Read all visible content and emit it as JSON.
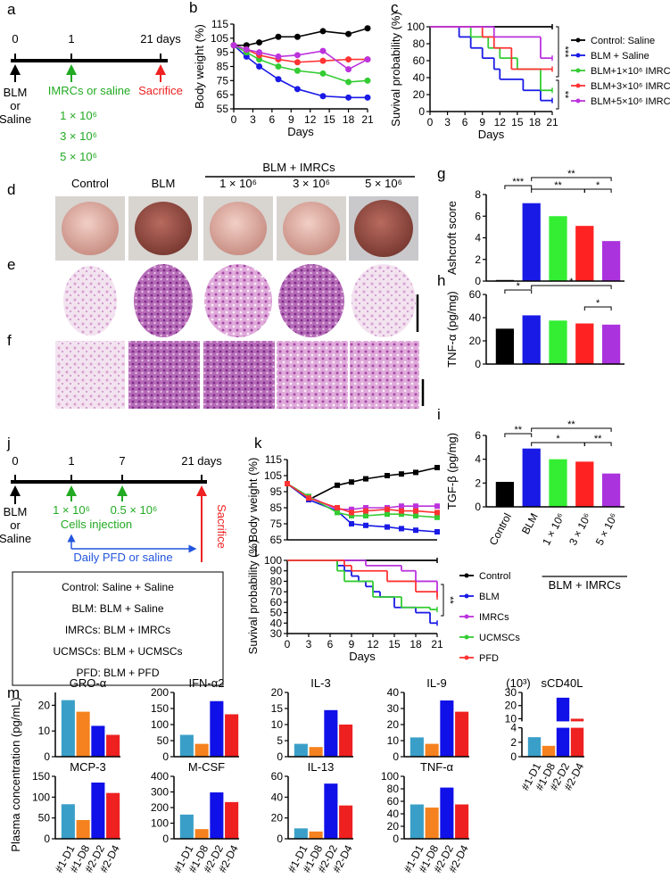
{
  "panel_labels": [
    "a",
    "b",
    "c",
    "d",
    "e",
    "f",
    "g",
    "h",
    "i",
    "j",
    "k",
    "l",
    "m"
  ],
  "timeline_a": {
    "ticks": [
      "0",
      "1",
      "21 days"
    ],
    "start": [
      "BLM",
      "or",
      "Saline"
    ],
    "injection": "IMRCs or saline",
    "end": "Sacrifice",
    "doses": [
      "1 × 10⁶",
      "3 × 10⁶",
      "5 × 10⁶"
    ]
  },
  "images_d": {
    "group": "BLM + IMRCs",
    "columns": [
      "Control",
      "BLM",
      "1 × 10⁶",
      "3 × 10⁶",
      "5 × 10⁶"
    ]
  },
  "timeline_j": {
    "ticks": [
      "0",
      "1",
      "7",
      "21 days"
    ],
    "start": [
      "BLM",
      "or",
      "Saline"
    ],
    "doses": [
      "1 × 10⁶",
      "0.5 × 10⁶"
    ],
    "injection": "Cells injection",
    "treatment": "Daily PFD or saline",
    "end": "Sacrifice",
    "groups": [
      "Control: Saline + Saline",
      "BLM: BLM + Saline",
      "IMRCs: BLM + IMRCs",
      "UCMSCs: BLM + UCMSCs",
      "PFD: BLM + PFD"
    ]
  },
  "m_panel": {
    "ylabel": "Plasma concentration (pg/mL)"
  },
  "chart_data": [
    {
      "type": "line",
      "marker": "circle",
      "xlabel": "Days",
      "ylabel": "Body weight (%)",
      "x": [
        0,
        2,
        4,
        7,
        10,
        14,
        18,
        21
      ],
      "xlim": [
        0,
        21
      ],
      "xticks": [
        0,
        3,
        6,
        9,
        12,
        15,
        18,
        21
      ],
      "ylim": [
        55,
        115
      ],
      "yticks": [
        55,
        65,
        75,
        85,
        95,
        105,
        115
      ],
      "series": [
        {
          "color": "#000000",
          "values": [
            100,
            100,
            102,
            106,
            106,
            110,
            108,
            112
          ]
        },
        {
          "color": "#1a1ae6",
          "values": [
            100,
            92,
            85,
            76,
            69,
            64,
            63,
            63
          ]
        },
        {
          "color": "#33cc33",
          "values": [
            100,
            95,
            90,
            85,
            82,
            80,
            74,
            75
          ]
        },
        {
          "color": "#ff3333",
          "values": [
            100,
            97,
            93,
            90,
            88,
            89,
            90,
            90
          ]
        },
        {
          "color": "#bb33dd",
          "values": [
            100,
            97,
            95,
            92,
            93,
            96,
            83,
            90
          ]
        }
      ]
    },
    {
      "type": "line",
      "drawstyle": "steps-post",
      "xlabel": "Days",
      "ylabel": "Suvival probability (%)",
      "xlim": [
        0,
        21
      ],
      "xticks": [
        0,
        3,
        6,
        9,
        12,
        15,
        18,
        21
      ],
      "ylim": [
        0,
        100
      ],
      "yticks": [
        0,
        20,
        40,
        60,
        80,
        100
      ],
      "legend": "right",
      "annotations": [
        "***",
        "**"
      ],
      "series": [
        {
          "name": "Control: Saline",
          "color": "#000000",
          "x": [
            0,
            21
          ],
          "values": [
            100,
            100
          ]
        },
        {
          "name": "BLM + Saline",
          "color": "#1a1ae6",
          "x": [
            0,
            5,
            7,
            9,
            11,
            12,
            16,
            19,
            21
          ],
          "values": [
            100,
            88,
            75,
            63,
            50,
            38,
            25,
            13,
            13
          ]
        },
        {
          "name": "BLM+1×10⁶ IMRCs",
          "color": "#33cc33",
          "x": [
            0,
            7,
            10,
            12,
            15,
            19,
            21
          ],
          "values": [
            100,
            88,
            75,
            63,
            50,
            25,
            25
          ]
        },
        {
          "name": "BLM+3×10⁶ IMRCs",
          "color": "#ff3333",
          "x": [
            0,
            9,
            11,
            14,
            21
          ],
          "values": [
            100,
            88,
            75,
            50,
            50
          ]
        },
        {
          "name": "BLM+5×10⁶ IMRCs",
          "color": "#bb33dd",
          "x": [
            0,
            11,
            19,
            21
          ],
          "values": [
            100,
            88,
            63,
            63
          ]
        }
      ]
    },
    {
      "type": "bar",
      "ylabel": "Ashcroft score",
      "ylim": [
        0,
        8
      ],
      "yticks": [
        0,
        2,
        4,
        6,
        8
      ],
      "values": [
        0.1,
        7.2,
        6.0,
        5.1,
        3.7
      ],
      "colors": [
        "#000000",
        "#1a1ae6",
        "#33ee33",
        "#ff2222",
        "#aa33dd"
      ],
      "annotations": [
        "***",
        "**",
        "**",
        "*"
      ]
    },
    {
      "type": "bar",
      "ylabel": "TNF-α (pg/mg)",
      "ylim": [
        0,
        60
      ],
      "yticks": [
        0,
        20,
        40,
        60
      ],
      "values": [
        30.5,
        42,
        37.5,
        35,
        34
      ],
      "colors": [
        "#000000",
        "#1a1ae6",
        "#33ee33",
        "#ff2222",
        "#aa33dd"
      ],
      "annotations": [
        "*",
        "*",
        "*"
      ]
    },
    {
      "type": "bar",
      "ylabel": "TGF-β (pg/mg)",
      "ylim": [
        0,
        6
      ],
      "yticks": [
        0,
        2,
        4,
        6
      ],
      "categories": [
        "Control",
        "BLM",
        "1 × 10⁶",
        "3 × 10⁶",
        "5 × 10⁶"
      ],
      "xlabel": "BLM + IMRCs",
      "values": [
        2.1,
        4.9,
        4.0,
        3.8,
        2.8
      ],
      "colors": [
        "#000000",
        "#1a1ae6",
        "#33ee33",
        "#ff2222",
        "#aa33dd"
      ],
      "annotations": [
        "**",
        "**",
        "*",
        "**"
      ]
    },
    {
      "type": "line",
      "marker": "square",
      "ylabel": "Body weight (%)",
      "x": [
        0,
        3,
        7,
        9,
        11,
        14,
        16,
        18,
        21
      ],
      "xlim": [
        0,
        21
      ],
      "ylim": [
        65,
        115
      ],
      "yticks": [
        65,
        75,
        85,
        95,
        105,
        115
      ],
      "series": [
        {
          "color": "#000000",
          "values": [
            100,
            90,
            99,
            101,
            103,
            105,
            106,
            107,
            110
          ]
        },
        {
          "color": "#1a1ae6",
          "values": [
            100,
            90,
            83,
            75,
            74,
            73,
            72,
            71,
            70
          ]
        },
        {
          "color": "#bb33dd",
          "values": [
            100,
            92,
            84,
            84,
            85,
            85,
            86,
            86,
            86
          ]
        },
        {
          "color": "#33cc33",
          "values": [
            100,
            92,
            82,
            80,
            80,
            81,
            81,
            80,
            79
          ]
        },
        {
          "color": "#ff3333",
          "values": [
            100,
            91,
            85,
            82,
            83,
            84,
            83,
            83,
            82
          ]
        }
      ]
    },
    {
      "type": "line",
      "drawstyle": "steps-post",
      "xlabel": "Days",
      "ylabel": "Suvival probability (%)",
      "xlim": [
        0,
        21
      ],
      "xticks": [
        0,
        3,
        6,
        9,
        12,
        15,
        18,
        21
      ],
      "ylim": [
        30,
        100
      ],
      "yticks": [
        30,
        40,
        50,
        60,
        70,
        80,
        90,
        100
      ],
      "legend": "right",
      "annotations": [
        "**"
      ],
      "series": [
        {
          "name": "Control",
          "color": "#000000",
          "x": [
            0,
            21
          ],
          "values": [
            100,
            100
          ]
        },
        {
          "name": "BLM",
          "color": "#1a1ae6",
          "x": [
            0,
            7,
            8,
            9,
            10,
            11,
            12,
            13,
            15,
            18,
            20,
            21
          ],
          "values": [
            100,
            95,
            90,
            85,
            80,
            75,
            70,
            65,
            55,
            50,
            40,
            40
          ]
        },
        {
          "name": "IMRCs",
          "color": "#bb33dd",
          "x": [
            0,
            11,
            16,
            18,
            21
          ],
          "values": [
            100,
            95,
            90,
            80,
            70
          ]
        },
        {
          "name": "UCMSCs",
          "color": "#33cc33",
          "x": [
            0,
            7,
            8,
            12,
            16,
            20,
            21
          ],
          "values": [
            100,
            90,
            80,
            65,
            55,
            53,
            53
          ]
        },
        {
          "name": "PFD",
          "color": "#ff3333",
          "x": [
            0,
            8,
            9,
            14,
            18,
            21
          ],
          "values": [
            100,
            95,
            90,
            80,
            70,
            65
          ]
        }
      ]
    },
    {
      "type": "bar",
      "title": "GRO-α",
      "ylim": [
        0,
        25
      ],
      "yticks": [
        0,
        10,
        20
      ],
      "values": [
        22,
        17.5,
        12,
        8.5
      ],
      "colors": [
        "#3a9fc8",
        "#f5821f",
        "#1010e8",
        "#ee2020"
      ]
    },
    {
      "type": "bar",
      "title": "IFN-α2",
      "ylim": [
        0,
        200
      ],
      "yticks": [
        0,
        50,
        100,
        150,
        200
      ],
      "values": [
        68,
        40,
        173,
        132
      ],
      "colors": [
        "#3a9fc8",
        "#f5821f",
        "#1010e8",
        "#ee2020"
      ]
    },
    {
      "type": "bar",
      "title": "IL-3",
      "ylim": [
        0,
        20
      ],
      "yticks": [
        0,
        5,
        10,
        15,
        20
      ],
      "values": [
        4,
        3,
        14.5,
        10
      ],
      "colors": [
        "#3a9fc8",
        "#f5821f",
        "#1010e8",
        "#ee2020"
      ]
    },
    {
      "type": "bar",
      "title": "IL-9",
      "ylim": [
        0,
        40
      ],
      "yticks": [
        0,
        10,
        20,
        30,
        40
      ],
      "values": [
        12,
        8,
        35,
        28
      ],
      "colors": [
        "#3a9fc8",
        "#f5821f",
        "#1010e8",
        "#ee2020"
      ]
    },
    {
      "type": "bar",
      "title": "sCD40L",
      "unit": "(10³)",
      "ylim": [
        0,
        30
      ],
      "y_break": [
        4,
        8
      ],
      "yticks": [
        0,
        2,
        4,
        10,
        20,
        30
      ],
      "categories": [
        "#1-D1",
        "#1-D8",
        "#2-D2",
        "#2-D4"
      ],
      "values": [
        2.7,
        1.5,
        26,
        10
      ],
      "colors": [
        "#3a9fc8",
        "#f5821f",
        "#1010e8",
        "#ee2020"
      ]
    },
    {
      "type": "bar",
      "title": "MCP-3",
      "ylim": [
        0,
        150
      ],
      "yticks": [
        0,
        50,
        100,
        150
      ],
      "categories": [
        "#1-D1",
        "#1-D8",
        "#2-D2",
        "#2-D4"
      ],
      "values": [
        83,
        45,
        135,
        110
      ],
      "colors": [
        "#3a9fc8",
        "#f5821f",
        "#1010e8",
        "#ee2020"
      ]
    },
    {
      "type": "bar",
      "title": "M-CSF",
      "ylim": [
        0,
        400
      ],
      "yticks": [
        0,
        100,
        200,
        300,
        400
      ],
      "categories": [
        "#1-D1",
        "#1-D8",
        "#2-D2",
        "#2-D4"
      ],
      "values": [
        155,
        62,
        297,
        235
      ],
      "colors": [
        "#3a9fc8",
        "#f5821f",
        "#1010e8",
        "#ee2020"
      ]
    },
    {
      "type": "bar",
      "title": "IL-13",
      "ylim": [
        0,
        60
      ],
      "yticks": [
        0,
        20,
        40,
        60
      ],
      "categories": [
        "#1-D1",
        "#1-D8",
        "#2-D2",
        "#2-D4"
      ],
      "values": [
        10,
        7,
        53,
        32
      ],
      "colors": [
        "#3a9fc8",
        "#f5821f",
        "#1010e8",
        "#ee2020"
      ]
    },
    {
      "type": "bar",
      "title": "TNF-α",
      "ylim": [
        0,
        100
      ],
      "yticks": [
        0,
        20,
        40,
        60,
        80,
        100
      ],
      "categories": [
        "#1-D1",
        "#1-D8",
        "#2-D2",
        "#2-D4"
      ],
      "values": [
        55,
        50,
        82,
        55
      ],
      "colors": [
        "#3a9fc8",
        "#f5821f",
        "#1010e8",
        "#ee2020"
      ]
    }
  ]
}
